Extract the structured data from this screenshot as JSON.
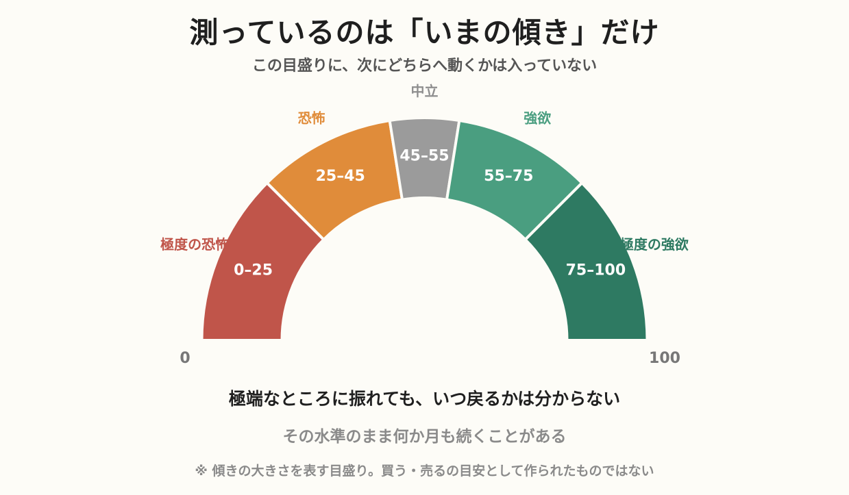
{
  "title": "測っているのは「いまの傾き」だけ",
  "subtitle": "この目盛りに、次にどちらへ動くかは入っていない",
  "gauge": {
    "min": 0,
    "max": 100,
    "min_label": "0",
    "max_label": "100",
    "segments": [
      {
        "from": 0,
        "to": 25,
        "range_label": "0–25",
        "name": "極度の恐怖",
        "color": "#c0554a",
        "name_color": "#c0554a"
      },
      {
        "from": 25,
        "to": 45,
        "range_label": "25–45",
        "name": "恐怖",
        "color": "#e08c3a",
        "name_color": "#e08c3a"
      },
      {
        "from": 45,
        "to": 55,
        "range_label": "45–55",
        "name": "中立",
        "color": "#9b9b9b",
        "name_color": "#8e8e8e"
      },
      {
        "from": 55,
        "to": 75,
        "range_label": "55–75",
        "name": "強欲",
        "color": "#4a9e80",
        "name_color": "#4a9e80"
      },
      {
        "from": 75,
        "to": 100,
        "range_label": "75–100",
        "name": "極度の強欲",
        "color": "#2e7a62",
        "name_color": "#2e7a62"
      }
    ]
  },
  "notes": {
    "main": "極端なところに振れても、いつ戻るかは分からない",
    "sub": "その水準のまま何か月も続くことがある",
    "footnote": "※ 傾きの大きさを表す目盛り。買う・売るの目安として作られたものではない"
  }
}
